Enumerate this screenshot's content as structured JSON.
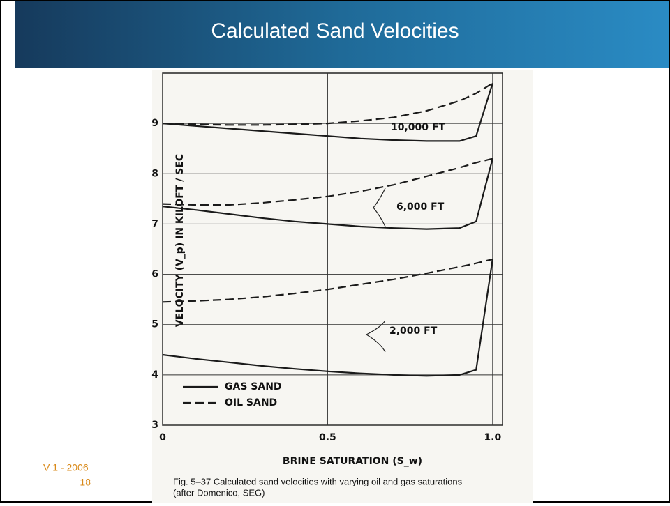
{
  "slide": {
    "title": "Calculated Sand Velocities",
    "version": "V 1 - 2006",
    "page": "18",
    "caption": [
      "Fig. 5–37 Calculated sand velocities with varying oil and gas saturations",
      "(after Domenico, SEG)"
    ]
  },
  "chart_data": {
    "type": "line",
    "x_label": "BRINE SATURATION (S_w)",
    "y_label": "VELOCITY (V_p) IN KILOFT / SEC",
    "x": [
      0,
      0.1,
      0.2,
      0.3,
      0.4,
      0.5,
      0.6,
      0.7,
      0.8,
      0.9,
      0.95,
      1.0
    ],
    "xlim": [
      0,
      1.03
    ],
    "ylim": [
      3,
      10
    ],
    "xticks": [
      0,
      0.5,
      {
        "value": 1.0,
        "label": "1.0"
      }
    ],
    "yticks": [
      3,
      4,
      5,
      6,
      7,
      8,
      9
    ],
    "grid": true,
    "depths": [
      "10,000 FT",
      "6,000 FT",
      "2,000 FT"
    ],
    "series": [
      {
        "name": "GAS SAND",
        "color": "#1a1a1a",
        "dashed": false,
        "lines": [
          [
            9.0,
            8.95,
            8.9,
            8.85,
            8.8,
            8.75,
            8.7,
            8.67,
            8.65,
            8.65,
            8.75,
            9.8
          ],
          [
            7.35,
            7.28,
            7.2,
            7.12,
            7.05,
            7.0,
            6.95,
            6.92,
            6.9,
            6.92,
            7.05,
            8.3
          ],
          [
            4.4,
            4.32,
            4.25,
            4.18,
            4.12,
            4.07,
            4.03,
            4.0,
            3.98,
            4.0,
            4.1,
            6.3
          ]
        ]
      },
      {
        "name": "OIL SAND",
        "color": "#1a1a1a",
        "dashed": true,
        "lines": [
          [
            9.0,
            8.98,
            8.97,
            8.97,
            8.98,
            9.0,
            9.05,
            9.12,
            9.25,
            9.45,
            9.6,
            9.8
          ],
          [
            7.4,
            7.38,
            7.38,
            7.42,
            7.48,
            7.55,
            7.65,
            7.78,
            7.95,
            8.12,
            8.22,
            8.3
          ],
          [
            5.45,
            5.47,
            5.5,
            5.55,
            5.62,
            5.7,
            5.8,
            5.9,
            6.02,
            6.15,
            6.22,
            6.3
          ]
        ]
      }
    ]
  }
}
